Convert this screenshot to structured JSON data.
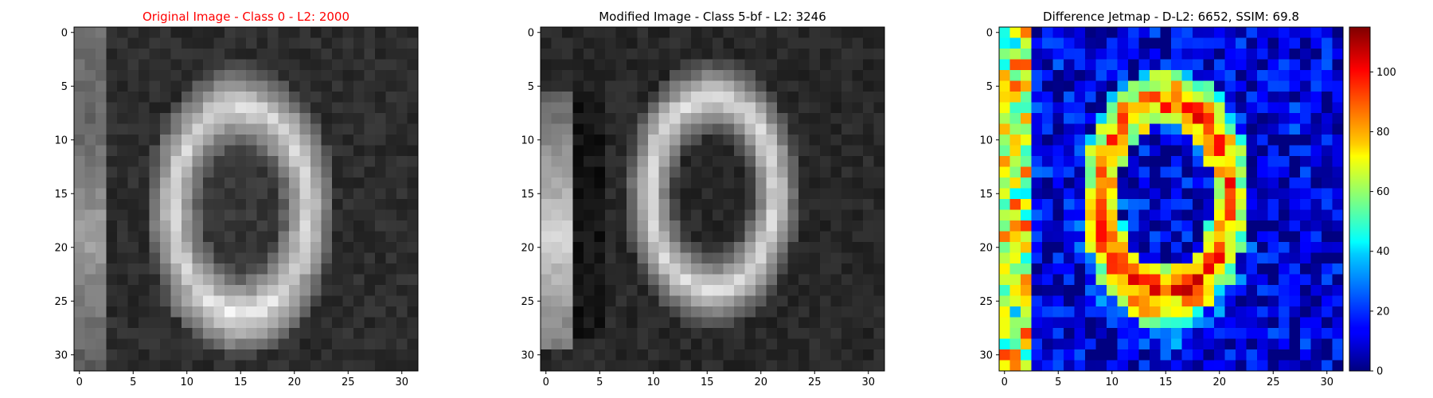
{
  "chart_data": [
    {
      "type": "heatmap",
      "title": "Original Image - Class 0 - L2: 2000",
      "title_color": "#ff0000",
      "colormap": "gray",
      "grid_size": [
        32,
        32
      ],
      "xlim": [
        -0.5,
        31.5
      ],
      "ylim": [
        31.5,
        -0.5
      ],
      "xticks": [
        0,
        5,
        10,
        15,
        20,
        25,
        30
      ],
      "yticks": [
        0,
        5,
        10,
        15,
        20,
        25,
        30
      ],
      "description": "grayscale digit 0 (ring), partial digit at left edge"
    },
    {
      "type": "heatmap",
      "title": "Modified Image - Class 5-bf - L2: 3246",
      "title_color": "#000000",
      "colormap": "gray",
      "grid_size": [
        32,
        32
      ],
      "xlim": [
        -0.5,
        31.5
      ],
      "ylim": [
        31.5,
        -0.5
      ],
      "xticks": [
        0,
        5,
        10,
        15,
        20,
        25,
        30
      ],
      "yticks": [
        0,
        5,
        10,
        15,
        20,
        25,
        30
      ]
    },
    {
      "type": "heatmap",
      "title": "Difference Jetmap - D-L2: 6652, SSIM: 69.8",
      "title_color": "#000000",
      "colormap": "jet",
      "grid_size": [
        32,
        32
      ],
      "xlim": [
        -0.5,
        31.5
      ],
      "ylim": [
        31.5,
        -0.5
      ],
      "xticks": [
        0,
        5,
        10,
        15,
        20,
        25,
        30
      ],
      "yticks": [
        0,
        5,
        10,
        15,
        20,
        25,
        30
      ],
      "colorbar": {
        "range": [
          0,
          115
        ],
        "ticks": [
          0,
          20,
          40,
          60,
          80,
          100
        ]
      }
    }
  ]
}
